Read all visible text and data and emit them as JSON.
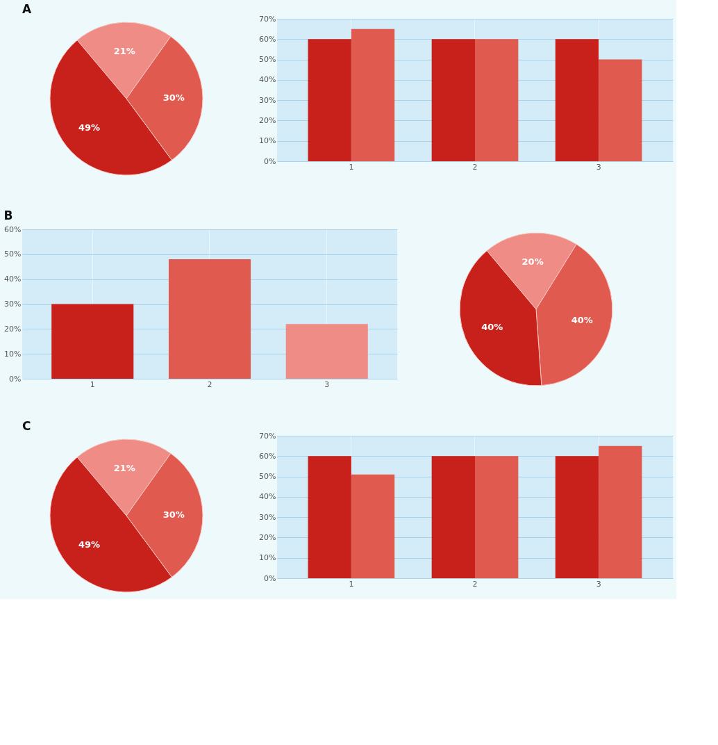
{
  "chart_data": [
    {
      "type": "pie",
      "title": "A",
      "categories": [
        null,
        null,
        null
      ],
      "values": [
        21,
        30,
        49
      ],
      "colors": [
        "#f08c86",
        "#e05a50",
        "#c8201a"
      ],
      "value_labels": [
        "21%",
        "30%",
        "49%"
      ]
    },
    {
      "type": "bar",
      "categories": [
        "1",
        "2",
        "3"
      ],
      "series": [
        {
          "color": "#c8201a",
          "values": [
            60,
            60,
            60
          ]
        },
        {
          "color": "#e05a50",
          "values": [
            65,
            60,
            50
          ]
        }
      ],
      "ylim": [
        0,
        70
      ],
      "yticks": [
        {
          "value": 0,
          "label": "0%"
        },
        {
          "value": 10,
          "label": "10%"
        },
        {
          "value": 20,
          "label": "20%"
        },
        {
          "value": 30,
          "label": "30%"
        },
        {
          "value": 40,
          "label": "40%"
        },
        {
          "value": 50,
          "label": "50%"
        },
        {
          "value": 60,
          "label": "60%"
        },
        {
          "value": 70,
          "label": "70%"
        }
      ],
      "grid": true
    },
    {
      "type": "bar",
      "title": "B",
      "categories": [
        "1",
        "2",
        "3"
      ],
      "values": [
        30,
        48,
        22
      ],
      "colors": [
        "#c8201a",
        "#e05a50",
        "#f08c86"
      ],
      "ylim": [
        0,
        60
      ],
      "yticks": [
        {
          "value": 0,
          "label": "0%"
        },
        {
          "value": 10,
          "label": "10%"
        },
        {
          "value": 20,
          "label": "20%"
        },
        {
          "value": 30,
          "label": "30%"
        },
        {
          "value": 40,
          "label": "40%"
        },
        {
          "value": 50,
          "label": "50%"
        },
        {
          "value": 60,
          "label": "60%"
        }
      ],
      "grid": true
    },
    {
      "type": "pie",
      "categories": [
        null,
        null,
        null
      ],
      "values": [
        20,
        40,
        40
      ],
      "colors": [
        "#f08c86",
        "#e05a50",
        "#c8201a"
      ],
      "value_labels": [
        "20%",
        "40%",
        "40%"
      ]
    },
    {
      "type": "pie",
      "title": "C",
      "categories": [
        null,
        null,
        null
      ],
      "values": [
        21,
        30,
        49
      ],
      "colors": [
        "#f08c86",
        "#e05a50",
        "#c8201a"
      ],
      "value_labels": [
        "21%",
        "30%",
        "49%"
      ]
    },
    {
      "type": "bar",
      "categories": [
        "1",
        "2",
        "3"
      ],
      "series": [
        {
          "color": "#c8201a",
          "values": [
            60,
            60,
            60
          ]
        },
        {
          "color": "#e05a50",
          "values": [
            51,
            60,
            65
          ]
        }
      ],
      "ylim": [
        0,
        70
      ],
      "yticks": [
        {
          "value": 0,
          "label": "0%"
        },
        {
          "value": 10,
          "label": "10%"
        },
        {
          "value": 20,
          "label": "20%"
        },
        {
          "value": 30,
          "label": "30%"
        },
        {
          "value": 40,
          "label": "40%"
        },
        {
          "value": 50,
          "label": "50%"
        },
        {
          "value": 60,
          "label": "60%"
        },
        {
          "value": 70,
          "label": "70%"
        }
      ],
      "grid": true
    }
  ]
}
